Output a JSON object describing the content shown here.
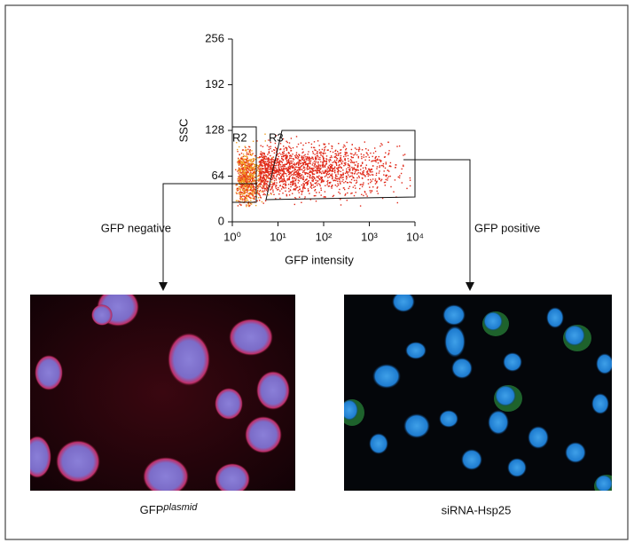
{
  "figure": {
    "plot": {
      "y_label": "SSC",
      "x_label": "GFP intensity",
      "ylim": [
        0,
        256
      ],
      "yticks": [
        0,
        64,
        128,
        192,
        256
      ],
      "xlim": [
        1,
        10000
      ],
      "log_x": true,
      "xticks": [
        {
          "value": 1,
          "label": "10⁰"
        },
        {
          "value": 10,
          "label": "10¹"
        },
        {
          "value": 100,
          "label": "10²"
        },
        {
          "value": 1000,
          "label": "10³"
        },
        {
          "value": 10000,
          "label": "10⁴"
        }
      ],
      "gates": [
        "R2",
        "R3"
      ]
    },
    "labels": {
      "left": "GFP negative",
      "right": "GFP positive"
    },
    "panels": [
      {
        "caption": "GFP",
        "caption_sup": "plasmid"
      },
      {
        "caption": "siRNA-Hsp25"
      }
    ]
  }
}
